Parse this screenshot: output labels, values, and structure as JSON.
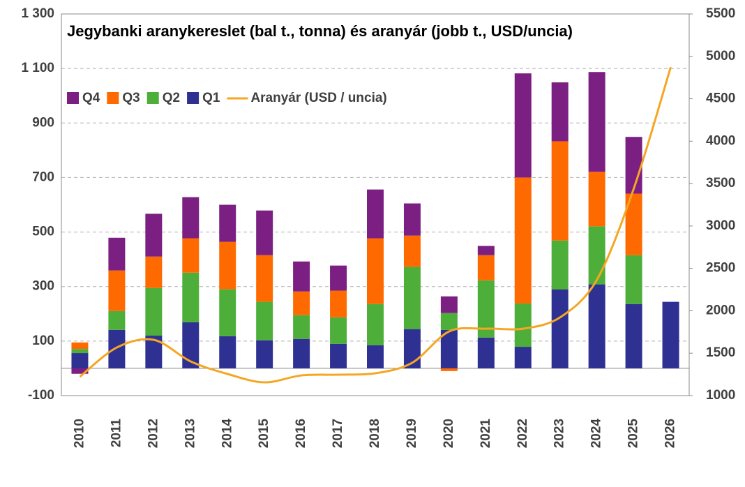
{
  "chart_data": {
    "type": "bar",
    "title": "Jegybanki aranykereslet (bal t., tonna) és aranyár (jobb t., USD/uncia)",
    "categories": [
      "2010",
      "2011",
      "2012",
      "2013",
      "2014",
      "2015",
      "2016",
      "2017",
      "2018",
      "2019",
      "2020",
      "2021",
      "2022",
      "2023",
      "2024",
      "2025",
      "2026"
    ],
    "series": [
      {
        "name": "Q1",
        "color": "#2e3192",
        "values": [
          56,
          141,
          120,
          169,
          118,
          103,
          108,
          90,
          85,
          144,
          141,
          113,
          79,
          290,
          308,
          236,
          244
        ]
      },
      {
        "name": "Q2",
        "color": "#4daf3a",
        "values": [
          15,
          69,
          175,
          182,
          172,
          141,
          87,
          97,
          151,
          228,
          62,
          210,
          159,
          179,
          213,
          179,
          null
        ]
      },
      {
        "name": "Q3",
        "color": "#ff6a00",
        "values": [
          24,
          149,
          115,
          126,
          174,
          171,
          87,
          98,
          241,
          115,
          -10,
          92,
          462,
          364,
          200,
          226,
          null
        ]
      },
      {
        "name": "Q4",
        "color": "#7b1f82",
        "values": [
          -20,
          120,
          157,
          151,
          136,
          164,
          110,
          92,
          179,
          118,
          61,
          34,
          382,
          216,
          366,
          208,
          null
        ]
      },
      {
        "name": "Aranyár (USD / uncia)",
        "color": "#f5a623",
        "type": "line",
        "axis": "y2",
        "values": [
          1222,
          1567,
          1658,
          1403,
          1255,
          1156,
          1238,
          1247,
          1263,
          1387,
          1757,
          1789,
          1789,
          1921,
          2365,
          3442,
          4873
        ]
      }
    ],
    "ylim": [
      -100,
      1300
    ],
    "yticks": [
      -100,
      100,
      300,
      500,
      700,
      900,
      {
        "value": 1100,
        "label": "1 100"
      },
      {
        "value": 1300,
        "label": "1 300"
      }
    ],
    "y2lim": [
      1000,
      5500
    ],
    "y2ticks": [
      1000,
      1500,
      2000,
      2500,
      3000,
      3500,
      4000,
      4500,
      5000,
      5500
    ],
    "grid": true,
    "stacked": true
  }
}
